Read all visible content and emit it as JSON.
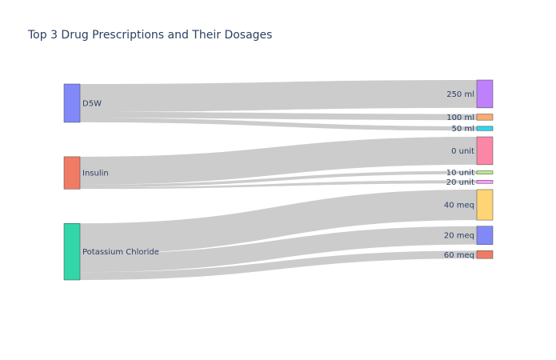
{
  "chart_data": {
    "type": "sankey",
    "title": "Top 3 Drug Prescriptions and Their Dosages",
    "nodes": [
      {
        "name": "D5W",
        "color": "#8189f8"
      },
      {
        "name": "Insulin",
        "color": "#f07b64"
      },
      {
        "name": "Potassium Chloride",
        "color": "#33d6a8"
      },
      {
        "name": "250 ml",
        "color": "#bf81fb"
      },
      {
        "name": "100 ml",
        "color": "#fbaa71"
      },
      {
        "name": "50 ml",
        "color": "#30d3f0"
      },
      {
        "name": "0 unit",
        "color": "#fc86a6"
      },
      {
        "name": "10 unit",
        "color": "#b8eb86"
      },
      {
        "name": "20 unit",
        "color": "#fa9cf8"
      },
      {
        "name": "40 meq",
        "color": "#fed475"
      },
      {
        "name": "20 meq",
        "color": "#8189f8"
      },
      {
        "name": "60 meq",
        "color": "#f07b64"
      }
    ],
    "links": [
      {
        "source": "D5W",
        "target": "250 ml",
        "value": 32
      },
      {
        "source": "D5W",
        "target": "100 ml",
        "value": 7
      },
      {
        "source": "D5W",
        "target": "50 ml",
        "value": 5
      },
      {
        "source": "Insulin",
        "target": "0 unit",
        "value": 32
      },
      {
        "source": "Insulin",
        "target": "10 unit",
        "value": 3
      },
      {
        "source": "Insulin",
        "target": "20 unit",
        "value": 2
      },
      {
        "source": "Potassium Chloride",
        "target": "40 meq",
        "value": 35
      },
      {
        "source": "Potassium Chloride",
        "target": "20 meq",
        "value": 21
      },
      {
        "source": "Potassium Chloride",
        "target": "60 meq",
        "value": 9
      }
    ]
  }
}
